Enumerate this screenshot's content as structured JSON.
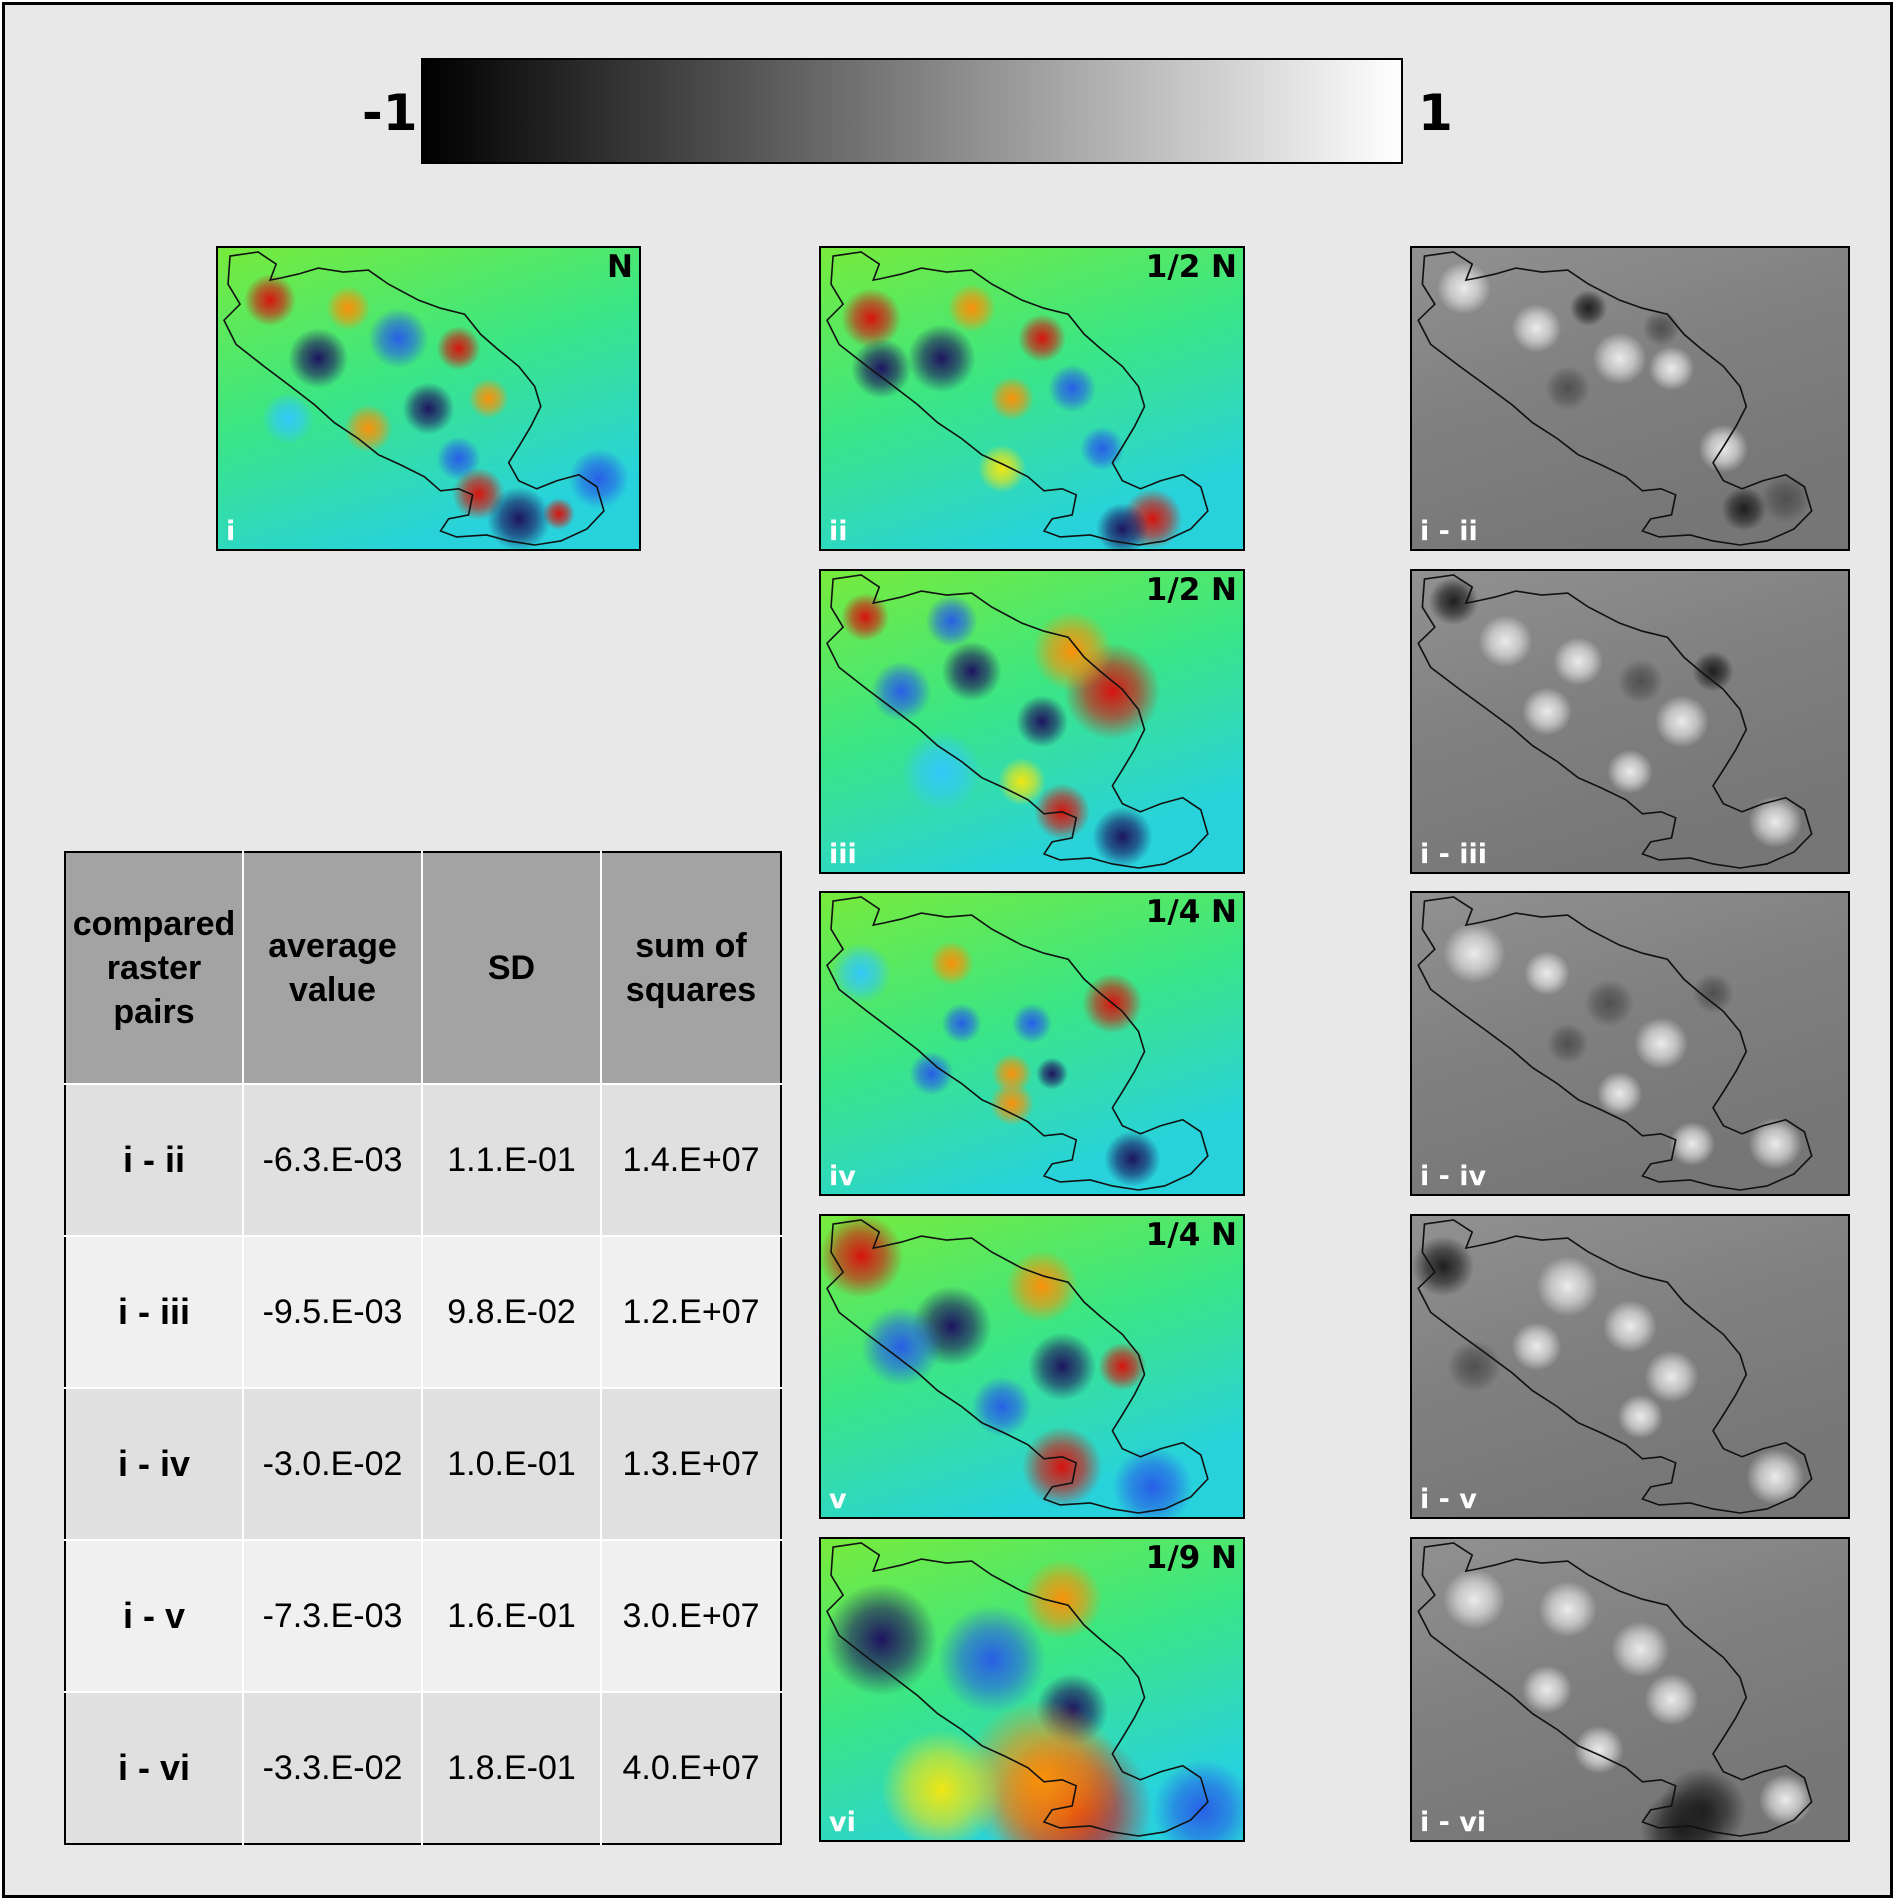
{
  "colorbar": {
    "min_label": "-1",
    "max_label": "1"
  },
  "panels": [
    {
      "id": "i",
      "top_label": "N",
      "bottom_label": "i"
    },
    {
      "id": "ii",
      "top_label": "1/2 N",
      "bottom_label": "ii"
    },
    {
      "id": "iii",
      "top_label": "1/2 N",
      "bottom_label": "iii"
    },
    {
      "id": "iv",
      "top_label": "1/4 N",
      "bottom_label": "iv"
    },
    {
      "id": "v",
      "top_label": "1/4 N",
      "bottom_label": "v"
    },
    {
      "id": "vi",
      "top_label": "1/9 N",
      "bottom_label": "vi"
    }
  ],
  "difference_panels": [
    {
      "id": "i-ii",
      "label": "i - ii"
    },
    {
      "id": "i-iii",
      "label": "i - iii"
    },
    {
      "id": "i-iv",
      "label": "i - iv"
    },
    {
      "id": "i-v",
      "label": "i - v"
    },
    {
      "id": "i-vi",
      "label": "i - vi"
    }
  ],
  "table": {
    "headers": [
      "compared raster pairs",
      "average value",
      "SD",
      "sum of squares"
    ],
    "rows": [
      {
        "pair": "i - ii",
        "average": "-6.3.E-03",
        "sd": "1.1.E-01",
        "ss": "1.4.E+07"
      },
      {
        "pair": "i - iii",
        "average": "-9.5.E-03",
        "sd": "9.8.E-02",
        "ss": "1.2.E+07"
      },
      {
        "pair": "i - iv",
        "average": "-3.0.E-02",
        "sd": "1.0.E-01",
        "ss": "1.3.E+07"
      },
      {
        "pair": "i - v",
        "average": "-7.3.E-03",
        "sd": "1.6.E-01",
        "ss": "3.0.E+07"
      },
      {
        "pair": "i - vi",
        "average": "-3.3.E-02",
        "sd": "1.8.E-01",
        "ss": "4.0.E+07"
      }
    ]
  }
}
